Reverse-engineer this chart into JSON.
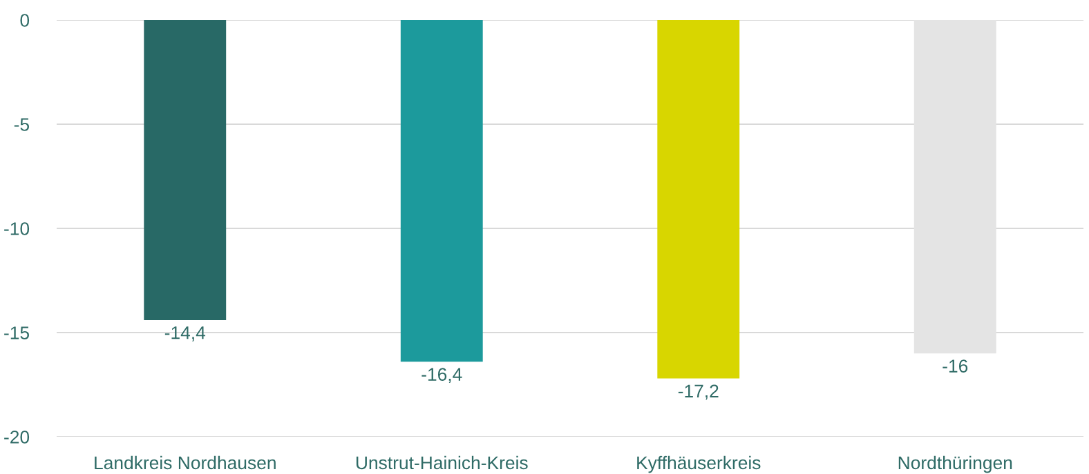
{
  "chart_data": {
    "type": "bar",
    "categories": [
      "Landkreis Nordhausen",
      "Unstrut-Hainich-Kreis",
      "Kyffhäuserkreis",
      "Nordthüringen"
    ],
    "values": [
      -14.4,
      -16.4,
      -17.2,
      -16
    ],
    "colors": [
      "#286966",
      "#1c9a9c",
      "#d8d600",
      "#e4e4e4"
    ],
    "value_labels": [
      "-14,4",
      "-16,4",
      "-17,2",
      "-16"
    ],
    "ylim": [
      -20,
      0
    ],
    "yticks": [
      -20,
      -15,
      -10,
      -5,
      0
    ],
    "grid": "y",
    "legend": false
  }
}
